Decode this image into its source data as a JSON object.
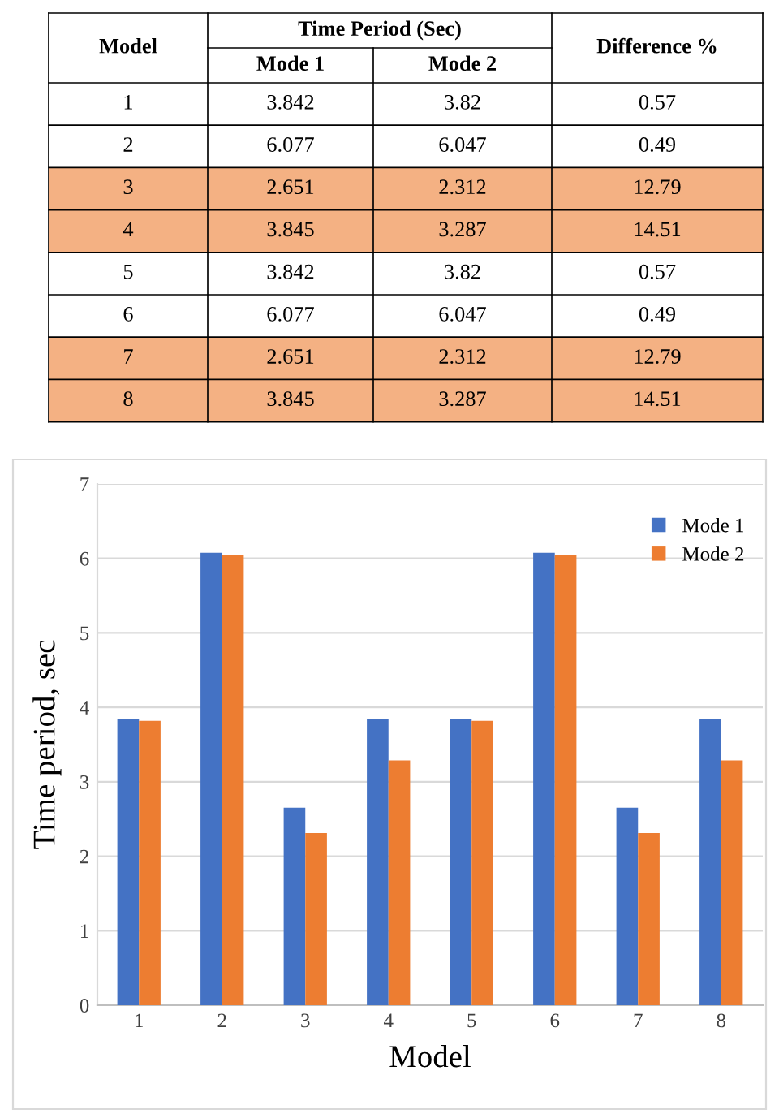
{
  "chart_data": {
    "type": "bar",
    "categories": [
      "1",
      "2",
      "3",
      "4",
      "5",
      "6",
      "7",
      "8"
    ],
    "series": [
      {
        "name": "Mode 1",
        "color": "#4472c4",
        "values": [
          3.842,
          6.077,
          2.651,
          3.845,
          3.842,
          6.077,
          2.651,
          3.845
        ]
      },
      {
        "name": "Mode 2",
        "color": "#ed7d31",
        "values": [
          3.82,
          6.047,
          2.312,
          3.287,
          3.82,
          6.047,
          2.312,
          3.287
        ]
      }
    ],
    "xlabel": "Model",
    "ylabel": "Time period, sec",
    "ylim": [
      0,
      7
    ],
    "yticks": [
      0,
      1,
      2,
      3,
      4,
      5,
      6,
      7
    ],
    "grid": "y",
    "legend": "top right",
    "annotations": [
      "Time Period (Sec)",
      "Difference %",
      "3.842",
      "3.82",
      "0.57",
      "6.077",
      "6.047",
      "0.49",
      "2.651",
      "2.312",
      "12.79",
      "3.845",
      "3.287",
      "14.51",
      "3.842",
      "3.82",
      "0.57",
      "6.077",
      "6.047",
      "0.49",
      "2.651",
      "2.312",
      "12.79",
      "3.845",
      "3.287",
      "14.51"
    ]
  }
}
